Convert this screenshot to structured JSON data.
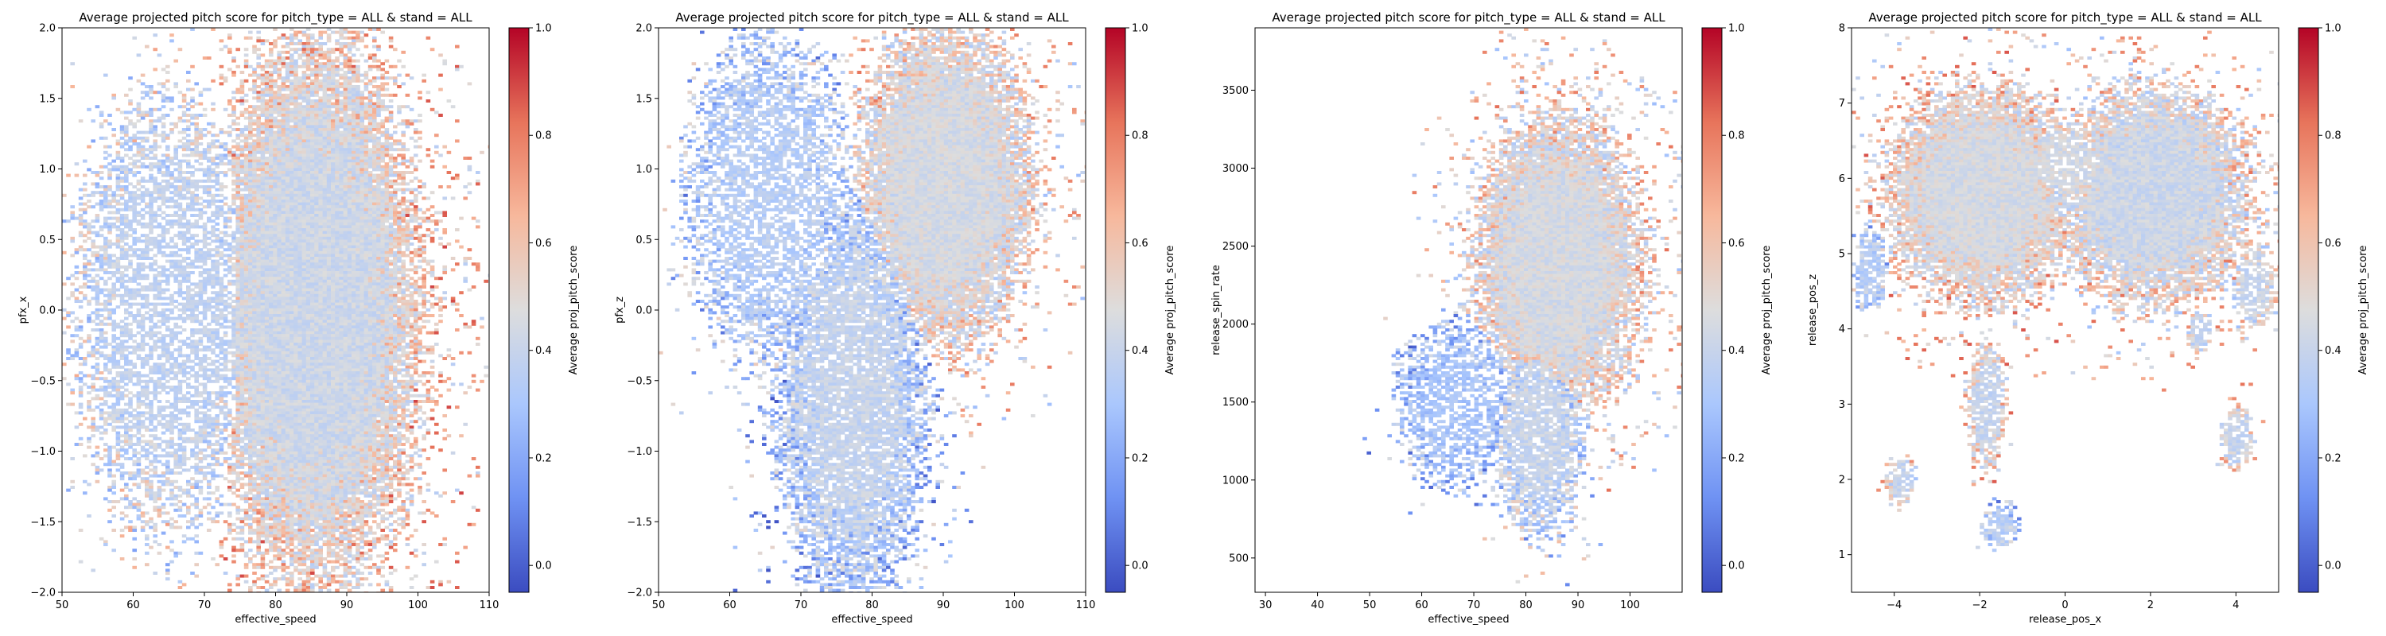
{
  "colormap": {
    "name": "coolwarm",
    "stops": [
      "#3b4cc0",
      "#6f92f3",
      "#aac7fd",
      "#dddddd",
      "#f7b89c",
      "#e7745b",
      "#b40426"
    ]
  },
  "chart_data": [
    {
      "type": "heatmap",
      "title": "Average projected pitch score for pitch_type = ALL & stand = ALL",
      "xlabel": "effective_speed",
      "ylabel": "pfx_x",
      "xlim": [
        50,
        110
      ],
      "ylim": [
        -2,
        2
      ],
      "xticks": [
        50,
        60,
        70,
        80,
        90,
        100,
        110
      ],
      "yticks": [
        -2.0,
        -1.5,
        -1.0,
        -0.5,
        0.0,
        0.5,
        1.0,
        1.5,
        2.0
      ],
      "ytick_labels": [
        "−2.0",
        "−1.5",
        "−1.0",
        "−0.5",
        "0.0",
        "0.5",
        "1.0",
        "1.5",
        "2.0"
      ],
      "colorbar": {
        "label": "Average proj_pitch_score",
        "range": [
          -0.05,
          1.0
        ],
        "ticks": [
          0.0,
          0.2,
          0.4,
          0.6,
          0.8,
          1.0
        ],
        "tick_labels": [
          "0.0",
          "0.2",
          "0.4",
          "0.6",
          "0.8",
          "1.0"
        ]
      },
      "density_regions": [
        {
          "shape": "ellipse",
          "cx": 85,
          "cy": 0.0,
          "rx": 16,
          "ry": 2.1,
          "mean_score": 0.42,
          "edge_score": 0.62,
          "weight": 1.0
        },
        {
          "shape": "ellipse",
          "cx": 65,
          "cy": 0.0,
          "rx": 14,
          "ry": 1.6,
          "mean_score": 0.38,
          "edge_score": 0.45,
          "weight": 0.22
        }
      ]
    },
    {
      "type": "heatmap",
      "title": "Average projected pitch score for pitch_type = ALL & stand = ALL",
      "xlabel": "effective_speed",
      "ylabel": "pfx_z",
      "xlim": [
        50,
        110
      ],
      "ylim": [
        -2,
        2
      ],
      "xticks": [
        50,
        60,
        70,
        80,
        90,
        100,
        110
      ],
      "yticks": [
        -2.0,
        -1.5,
        -1.0,
        -0.5,
        0.0,
        0.5,
        1.0,
        1.5,
        2.0
      ],
      "ytick_labels": [
        "−2.0",
        "−1.5",
        "−1.0",
        "−0.5",
        "0.0",
        "0.5",
        "1.0",
        "1.5",
        "2.0"
      ],
      "colorbar": {
        "label": "Average proj_pitch_score",
        "range": [
          -0.05,
          1.0
        ],
        "ticks": [
          0.0,
          0.2,
          0.4,
          0.6,
          0.8,
          1.0
        ],
        "tick_labels": [
          "0.0",
          "0.2",
          "0.4",
          "0.6",
          "0.8",
          "1.0"
        ]
      },
      "density_regions": [
        {
          "shape": "ellipse",
          "cx": 77,
          "cy": -0.6,
          "rx": 11,
          "ry": 1.5,
          "mean_score": 0.4,
          "edge_score": 0.25,
          "weight": 0.7
        },
        {
          "shape": "ellipse",
          "cx": 90,
          "cy": 0.9,
          "rx": 13,
          "ry": 1.2,
          "mean_score": 0.45,
          "edge_score": 0.55,
          "weight": 1.0
        },
        {
          "shape": "ellipse",
          "cx": 65,
          "cy": 0.8,
          "rx": 12,
          "ry": 1.2,
          "mean_score": 0.35,
          "edge_score": 0.3,
          "weight": 0.2
        }
      ]
    },
    {
      "type": "heatmap",
      "title": "Average projected pitch score for pitch_type = ALL & stand = ALL",
      "xlabel": "effective_speed",
      "ylabel": "release_spin_rate",
      "xlim": [
        28,
        110
      ],
      "ylim": [
        280,
        3900
      ],
      "xticks": [
        30,
        40,
        50,
        60,
        70,
        80,
        90,
        100
      ],
      "yticks": [
        500,
        1000,
        1500,
        2000,
        2500,
        3000,
        3500
      ],
      "ytick_labels": [
        "500",
        "1000",
        "1500",
        "2000",
        "2500",
        "3000",
        "3500"
      ],
      "colorbar": {
        "label": "Average proj_pitch_score",
        "range": [
          -0.05,
          1.0
        ],
        "ticks": [
          0.0,
          0.2,
          0.4,
          0.6,
          0.8,
          1.0
        ],
        "tick_labels": [
          "0.0",
          "0.2",
          "0.4",
          "0.6",
          "0.8",
          "1.0"
        ]
      },
      "density_regions": [
        {
          "shape": "ellipse",
          "cx": 86,
          "cy": 2400,
          "rx": 17,
          "ry": 1000,
          "mean_score": 0.45,
          "edge_score": 0.55,
          "weight": 1.0
        },
        {
          "shape": "ellipse",
          "cx": 82,
          "cy": 1300,
          "rx": 9,
          "ry": 650,
          "mean_score": 0.4,
          "edge_score": 0.35,
          "weight": 0.7
        },
        {
          "shape": "ellipse",
          "cx": 66,
          "cy": 1500,
          "rx": 12,
          "ry": 550,
          "mean_score": 0.3,
          "edge_score": 0.25,
          "weight": 0.18
        }
      ]
    },
    {
      "type": "heatmap",
      "title": "Average projected pitch score for pitch_type = ALL & stand = ALL",
      "xlabel": "release_pos_x",
      "ylabel": "release_pos_z",
      "xlim": [
        -5,
        5
      ],
      "ylim": [
        0.5,
        8
      ],
      "xticks": [
        -4,
        -2,
        0,
        2,
        4
      ],
      "xtick_labels": [
        "−4",
        "−2",
        "0",
        "2",
        "4"
      ],
      "yticks": [
        1,
        2,
        3,
        4,
        5,
        6,
        7,
        8
      ],
      "ytick_labels": [
        "1",
        "2",
        "3",
        "4",
        "5",
        "6",
        "7",
        "8"
      ],
      "colorbar": {
        "label": "Average proj_pitch_score",
        "range": [
          -0.05,
          1.0
        ],
        "ticks": [
          0.0,
          0.2,
          0.4,
          0.6,
          0.8,
          1.0
        ],
        "tick_labels": [
          "0.0",
          "0.2",
          "0.4",
          "0.6",
          "0.8",
          "1.0"
        ]
      },
      "density_regions": [
        {
          "shape": "ellipse",
          "cx": -2.0,
          "cy": 5.8,
          "rx": 2.4,
          "ry": 1.5,
          "mean_score": 0.45,
          "edge_score": 0.6,
          "weight": 1.0
        },
        {
          "shape": "ellipse",
          "cx": 2.0,
          "cy": 5.8,
          "rx": 2.4,
          "ry": 1.5,
          "mean_score": 0.42,
          "edge_score": 0.55,
          "weight": 1.0
        },
        {
          "shape": "ellipse",
          "cx": 0.0,
          "cy": 6.2,
          "rx": 1.2,
          "ry": 0.6,
          "mean_score": 0.45,
          "edge_score": 0.5,
          "weight": 0.6
        },
        {
          "shape": "ellipse",
          "cx": -1.9,
          "cy": 3.0,
          "rx": 0.45,
          "ry": 0.9,
          "mean_score": 0.4,
          "edge_score": 0.6,
          "weight": 0.6
        },
        {
          "shape": "ellipse",
          "cx": -3.9,
          "cy": 2.0,
          "rx": 0.35,
          "ry": 0.35,
          "mean_score": 0.4,
          "edge_score": 0.55,
          "weight": 0.5
        },
        {
          "shape": "ellipse",
          "cx": -1.6,
          "cy": 1.4,
          "rx": 0.45,
          "ry": 0.3,
          "mean_score": 0.35,
          "edge_score": 0.3,
          "weight": 0.5
        },
        {
          "shape": "ellipse",
          "cx": 4.0,
          "cy": 2.6,
          "rx": 0.4,
          "ry": 0.45,
          "mean_score": 0.4,
          "edge_score": 0.6,
          "weight": 0.5
        },
        {
          "shape": "ellipse",
          "cx": -4.6,
          "cy": 4.8,
          "rx": 0.4,
          "ry": 0.6,
          "mean_score": 0.35,
          "edge_score": 0.35,
          "weight": 0.5
        },
        {
          "shape": "ellipse",
          "cx": 4.4,
          "cy": 4.6,
          "rx": 0.5,
          "ry": 0.6,
          "mean_score": 0.4,
          "edge_score": 0.55,
          "weight": 0.5
        },
        {
          "shape": "ellipse",
          "cx": 3.1,
          "cy": 4.0,
          "rx": 0.3,
          "ry": 0.3,
          "mean_score": 0.4,
          "edge_score": 0.5,
          "weight": 0.4
        }
      ]
    }
  ]
}
